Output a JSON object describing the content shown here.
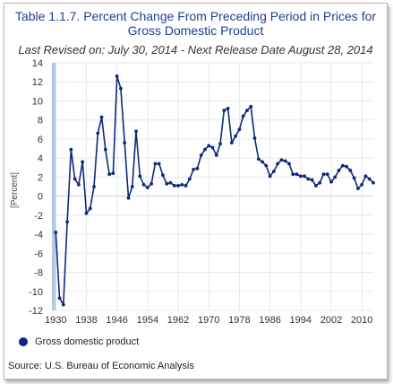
{
  "title": "Table 1.1.7. Percent Change From Preceding Period in Prices for Gross Domestic Product",
  "subtitle": "Last Revised on: July 30, 2014 - Next Release Date August 28, 2014",
  "source": "Source: U.S. Bureau of Economic Analysis",
  "colors": {
    "line": "#10287a",
    "title": "#1f3e92",
    "grid": "#e3e8f0",
    "shade": "#aac4dc"
  },
  "chart_data": {
    "type": "line",
    "title": "Table 1.1.7. Percent Change From Preceding Period in Prices for Gross Domestic Product",
    "xlabel": "",
    "ylabel": "[Percent]",
    "ylim": [
      -12,
      14
    ],
    "xlim": [
      1929,
      2013
    ],
    "grid": true,
    "legend_position": "bottom-left",
    "y_ticks": [
      14,
      12,
      10,
      8,
      6,
      4,
      2,
      0,
      -2,
      -4,
      -6,
      -8,
      -10,
      -12
    ],
    "x_ticks": [
      1930,
      1938,
      1946,
      1954,
      1962,
      1970,
      1978,
      1986,
      1994,
      2002,
      2010
    ],
    "series": [
      {
        "name": "Gross domestic product",
        "x": [
          1930,
          1931,
          1932,
          1933,
          1934,
          1935,
          1936,
          1937,
          1938,
          1939,
          1940,
          1941,
          1942,
          1943,
          1944,
          1945,
          1946,
          1947,
          1948,
          1949,
          1950,
          1951,
          1952,
          1953,
          1954,
          1955,
          1956,
          1957,
          1958,
          1959,
          1960,
          1961,
          1962,
          1963,
          1964,
          1965,
          1966,
          1967,
          1968,
          1969,
          1970,
          1971,
          1972,
          1973,
          1974,
          1975,
          1976,
          1977,
          1978,
          1979,
          1980,
          1981,
          1982,
          1983,
          1984,
          1985,
          1986,
          1987,
          1988,
          1989,
          1990,
          1991,
          1992,
          1993,
          1994,
          1995,
          1996,
          1997,
          1998,
          1999,
          2000,
          2001,
          2002,
          2003,
          2004,
          2005,
          2006,
          2007,
          2008,
          2009,
          2010,
          2011,
          2012,
          2013
        ],
        "values": [
          -3.8,
          -10.7,
          -11.4,
          -2.7,
          4.9,
          1.8,
          1.2,
          3.6,
          -1.8,
          -1.3,
          1.0,
          6.6,
          8.3,
          4.9,
          2.3,
          2.4,
          12.6,
          11.3,
          5.6,
          -0.2,
          1.0,
          6.8,
          2.1,
          1.2,
          0.9,
          1.3,
          3.4,
          3.4,
          2.2,
          1.3,
          1.4,
          1.1,
          1.1,
          1.2,
          1.1,
          1.8,
          2.8,
          2.9,
          4.3,
          4.9,
          5.3,
          5.1,
          4.3,
          5.5,
          9.0,
          9.2,
          5.6,
          6.3,
          7.0,
          8.4,
          9.0,
          9.4,
          6.1,
          3.9,
          3.6,
          3.2,
          2.1,
          2.6,
          3.4,
          3.8,
          3.7,
          3.4,
          2.3,
          2.3,
          2.1,
          2.1,
          1.8,
          1.7,
          1.1,
          1.4,
          2.3,
          2.3,
          1.5,
          2.0,
          2.7,
          3.2,
          3.1,
          2.7,
          1.9,
          0.8,
          1.2,
          2.1,
          1.8,
          1.4
        ]
      }
    ],
    "shaded_region": {
      "x_start": 1929,
      "x_end": 1930
    }
  }
}
